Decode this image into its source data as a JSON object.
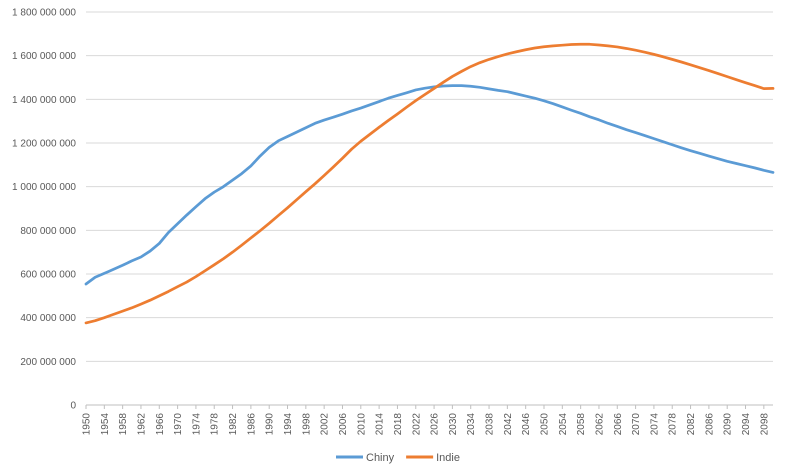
{
  "chart_data": {
    "type": "line",
    "x_tick_labels": [
      "1950",
      "1954",
      "1958",
      "1962",
      "1966",
      "1970",
      "1974",
      "1978",
      "1982",
      "1986",
      "1990",
      "1994",
      "1998",
      "2002",
      "2006",
      "2010",
      "2014",
      "2018",
      "2022",
      "2026",
      "2030",
      "2034",
      "2038",
      "2042",
      "2046",
      "2050",
      "2054",
      "2058",
      "2062",
      "2066",
      "2070",
      "2074",
      "2078",
      "2082",
      "2086",
      "2090",
      "2094",
      "2098"
    ],
    "x_range": [
      1950,
      2100
    ],
    "y_range": [
      0,
      1800000000
    ],
    "y_ticks": [
      {
        "value": 0,
        "label": "0"
      },
      {
        "value": 200000000,
        "label": "200 000 000"
      },
      {
        "value": 400000000,
        "label": "400 000 000"
      },
      {
        "value": 600000000,
        "label": "600 000 000"
      },
      {
        "value": 800000000,
        "label": "800 000 000"
      },
      {
        "value": 1000000000,
        "label": "1 000 000 000"
      },
      {
        "value": 1200000000,
        "label": "1 200 000 000"
      },
      {
        "value": 1400000000,
        "label": "1 400 000 000"
      },
      {
        "value": 1600000000,
        "label": "1 600 000 000"
      },
      {
        "value": 1800000000,
        "label": "1 800 000 000"
      }
    ],
    "grid": "horizontal",
    "legend_position": "bottom",
    "series": [
      {
        "name": "Chiny",
        "color": "#5B9BD5",
        "points": [
          [
            1950,
            554000000
          ],
          [
            1952,
            585000000
          ],
          [
            1955,
            612000000
          ],
          [
            1958,
            640000000
          ],
          [
            1960,
            660000000
          ],
          [
            1962,
            678000000
          ],
          [
            1964,
            705000000
          ],
          [
            1966,
            740000000
          ],
          [
            1968,
            790000000
          ],
          [
            1970,
            830000000
          ],
          [
            1972,
            870000000
          ],
          [
            1974,
            908000000
          ],
          [
            1976,
            945000000
          ],
          [
            1978,
            975000000
          ],
          [
            1980,
            1000000000
          ],
          [
            1982,
            1030000000
          ],
          [
            1984,
            1060000000
          ],
          [
            1986,
            1095000000
          ],
          [
            1988,
            1140000000
          ],
          [
            1990,
            1180000000
          ],
          [
            1992,
            1210000000
          ],
          [
            1994,
            1230000000
          ],
          [
            1996,
            1250000000
          ],
          [
            1998,
            1270000000
          ],
          [
            2000,
            1290000000
          ],
          [
            2002,
            1305000000
          ],
          [
            2004,
            1318000000
          ],
          [
            2006,
            1332000000
          ],
          [
            2008,
            1347000000
          ],
          [
            2010,
            1360000000
          ],
          [
            2012,
            1375000000
          ],
          [
            2014,
            1390000000
          ],
          [
            2016,
            1405000000
          ],
          [
            2018,
            1418000000
          ],
          [
            2020,
            1430000000
          ],
          [
            2022,
            1443000000
          ],
          [
            2024,
            1451000000
          ],
          [
            2026,
            1457000000
          ],
          [
            2028,
            1461000000
          ],
          [
            2030,
            1463000000
          ],
          [
            2032,
            1463000000
          ],
          [
            2034,
            1460000000
          ],
          [
            2036,
            1455000000
          ],
          [
            2038,
            1448000000
          ],
          [
            2040,
            1441000000
          ],
          [
            2042,
            1435000000
          ],
          [
            2044,
            1425000000
          ],
          [
            2046,
            1415000000
          ],
          [
            2048,
            1405000000
          ],
          [
            2050,
            1393000000
          ],
          [
            2052,
            1380000000
          ],
          [
            2054,
            1365000000
          ],
          [
            2056,
            1350000000
          ],
          [
            2058,
            1336000000
          ],
          [
            2060,
            1320000000
          ],
          [
            2062,
            1306000000
          ],
          [
            2064,
            1290000000
          ],
          [
            2066,
            1276000000
          ],
          [
            2068,
            1261000000
          ],
          [
            2070,
            1248000000
          ],
          [
            2072,
            1234000000
          ],
          [
            2074,
            1220000000
          ],
          [
            2076,
            1206000000
          ],
          [
            2078,
            1192000000
          ],
          [
            2080,
            1178000000
          ],
          [
            2082,
            1165000000
          ],
          [
            2084,
            1153000000
          ],
          [
            2086,
            1140000000
          ],
          [
            2088,
            1128000000
          ],
          [
            2090,
            1116000000
          ],
          [
            2092,
            1106000000
          ],
          [
            2094,
            1096000000
          ],
          [
            2096,
            1086000000
          ],
          [
            2098,
            1075000000
          ],
          [
            2100,
            1065000000
          ]
        ]
      },
      {
        "name": "Indie",
        "color": "#ED7D31",
        "points": [
          [
            1950,
            376000000
          ],
          [
            1952,
            386000000
          ],
          [
            1954,
            400000000
          ],
          [
            1956,
            415000000
          ],
          [
            1958,
            430000000
          ],
          [
            1960,
            445000000
          ],
          [
            1962,
            462000000
          ],
          [
            1964,
            480000000
          ],
          [
            1966,
            500000000
          ],
          [
            1968,
            520000000
          ],
          [
            1970,
            542000000
          ],
          [
            1972,
            563000000
          ],
          [
            1974,
            588000000
          ],
          [
            1976,
            615000000
          ],
          [
            1978,
            642000000
          ],
          [
            1980,
            670000000
          ],
          [
            1982,
            700000000
          ],
          [
            1984,
            732000000
          ],
          [
            1986,
            765000000
          ],
          [
            1988,
            798000000
          ],
          [
            1990,
            832000000
          ],
          [
            1992,
            868000000
          ],
          [
            1994,
            903000000
          ],
          [
            1996,
            940000000
          ],
          [
            1998,
            977000000
          ],
          [
            2000,
            1013000000
          ],
          [
            2002,
            1051000000
          ],
          [
            2004,
            1090000000
          ],
          [
            2006,
            1130000000
          ],
          [
            2008,
            1172000000
          ],
          [
            2010,
            1208000000
          ],
          [
            2012,
            1240000000
          ],
          [
            2014,
            1272000000
          ],
          [
            2016,
            1303000000
          ],
          [
            2018,
            1333000000
          ],
          [
            2020,
            1364000000
          ],
          [
            2022,
            1394000000
          ],
          [
            2024,
            1422000000
          ],
          [
            2026,
            1450000000
          ],
          [
            2028,
            1478000000
          ],
          [
            2030,
            1505000000
          ],
          [
            2032,
            1528000000
          ],
          [
            2034,
            1550000000
          ],
          [
            2036,
            1568000000
          ],
          [
            2038,
            1583000000
          ],
          [
            2040,
            1596000000
          ],
          [
            2042,
            1608000000
          ],
          [
            2044,
            1618000000
          ],
          [
            2046,
            1627000000
          ],
          [
            2048,
            1635000000
          ],
          [
            2050,
            1641000000
          ],
          [
            2052,
            1645000000
          ],
          [
            2054,
            1648000000
          ],
          [
            2056,
            1651000000
          ],
          [
            2058,
            1652000000
          ],
          [
            2060,
            1652000000
          ],
          [
            2062,
            1649000000
          ],
          [
            2064,
            1645000000
          ],
          [
            2066,
            1640000000
          ],
          [
            2068,
            1633000000
          ],
          [
            2070,
            1625000000
          ],
          [
            2072,
            1616000000
          ],
          [
            2074,
            1606000000
          ],
          [
            2076,
            1595000000
          ],
          [
            2078,
            1583000000
          ],
          [
            2080,
            1571000000
          ],
          [
            2082,
            1558000000
          ],
          [
            2084,
            1545000000
          ],
          [
            2086,
            1532000000
          ],
          [
            2088,
            1518000000
          ],
          [
            2090,
            1504000000
          ],
          [
            2092,
            1490000000
          ],
          [
            2094,
            1476000000
          ],
          [
            2096,
            1463000000
          ],
          [
            2098,
            1449000000
          ],
          [
            2100,
            1450000000
          ]
        ]
      }
    ]
  }
}
